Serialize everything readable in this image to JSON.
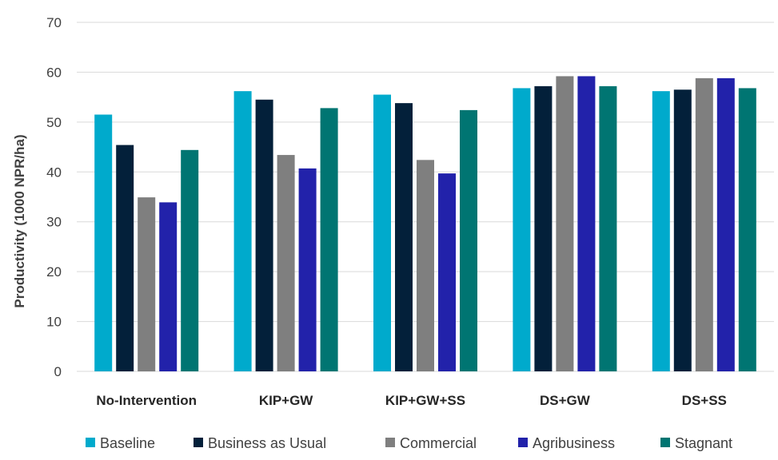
{
  "chart_data": {
    "type": "bar",
    "title": "",
    "xlabel": "",
    "ylabel": "Productivity (1000 NPR/ha)",
    "ylim": [
      0,
      70
    ],
    "yticks": [
      0,
      10,
      20,
      30,
      40,
      50,
      60,
      70
    ],
    "grid": true,
    "legend_position": "bottom",
    "categories": [
      "No-Intervention",
      "KIP+GW",
      "KIP+GW+SS",
      "DS+GW",
      "DS+SS"
    ],
    "series": [
      {
        "name": "Baseline",
        "color": "#00aacc",
        "values": [
          51.5,
          56.2,
          55.5,
          56.8,
          56.2
        ]
      },
      {
        "name": "Business as Usual",
        "color": "#03203a",
        "values": [
          45.4,
          54.5,
          53.8,
          57.2,
          56.5
        ]
      },
      {
        "name": "Commercial",
        "color": "#7f7f7f",
        "values": [
          34.9,
          43.4,
          42.4,
          59.2,
          58.8
        ]
      },
      {
        "name": "Agribusiness",
        "color": "#2222aa",
        "values": [
          33.9,
          40.7,
          39.7,
          59.2,
          58.8
        ]
      },
      {
        "name": "Stagnant",
        "color": "#007572",
        "values": [
          44.4,
          52.8,
          52.4,
          57.2,
          56.8
        ]
      }
    ]
  }
}
